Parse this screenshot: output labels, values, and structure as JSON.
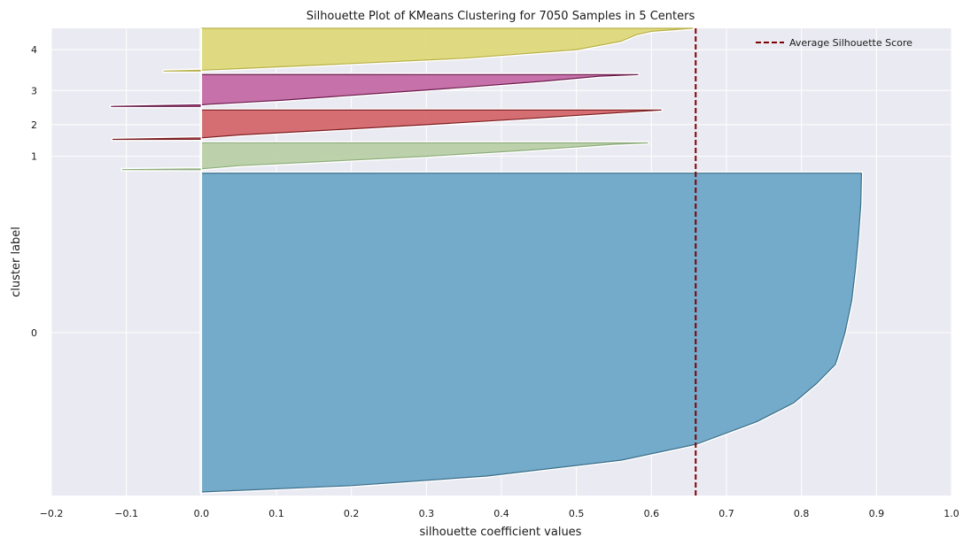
{
  "chart_data": {
    "type": "area",
    "title": "Silhouette Plot of KMeans Clustering for 7050 Samples in 5 Centers",
    "xlabel": "silhouette coefficient values",
    "ylabel": "cluster label",
    "xlim": [
      -0.2,
      1.0
    ],
    "x_ticks": [
      -0.2,
      -0.1,
      0.0,
      0.1,
      0.2,
      0.3,
      0.4,
      0.5,
      0.6,
      0.7,
      0.8,
      0.9,
      1.0
    ],
    "x_tick_labels": [
      "−0.2",
      "−0.1",
      "0.0",
      "0.1",
      "0.2",
      "0.3",
      "0.4",
      "0.5",
      "0.6",
      "0.7",
      "0.8",
      "0.9",
      "1.0"
    ],
    "y_tick_labels": [
      "0",
      "1",
      "2",
      "3",
      "4"
    ],
    "grid": true,
    "background": "#eaeaf2",
    "average_silhouette_score": 0.659,
    "legend": {
      "label": "Average Silhouette Score",
      "placement": "top-right",
      "color": "#7b0000"
    },
    "clusters": [
      {
        "label": "0",
        "size": 5000,
        "min": -0.0,
        "max": 0.88,
        "color": "#6ea7c7",
        "edge": "#3b6f8a",
        "profile": [
          [
            0,
            0.88
          ],
          [
            0.1,
            0.879
          ],
          [
            0.2,
            0.876
          ],
          [
            0.3,
            0.872
          ],
          [
            0.4,
            0.867
          ],
          [
            0.5,
            0.858
          ],
          [
            0.58,
            0.848
          ],
          [
            0.6,
            0.845
          ],
          [
            0.66,
            0.82
          ],
          [
            0.72,
            0.79
          ],
          [
            0.78,
            0.74
          ],
          [
            0.85,
            0.66
          ],
          [
            0.9,
            0.56
          ],
          [
            0.95,
            0.38
          ],
          [
            0.98,
            0.2
          ],
          [
            1.0,
            0.0
          ]
        ]
      },
      {
        "label": "1",
        "size": 420,
        "min": -0.105,
        "max": 0.595,
        "color": "#b9d0a7",
        "edge": "#8fad7e",
        "profile": [
          [
            0,
            0.595
          ],
          [
            0.05,
            0.55
          ],
          [
            0.15,
            0.5
          ],
          [
            0.3,
            0.42
          ],
          [
            0.5,
            0.3
          ],
          [
            0.7,
            0.16
          ],
          [
            0.85,
            0.05
          ],
          [
            0.97,
            0.0
          ],
          [
            1.0,
            -0.105
          ]
        ]
      },
      {
        "label": "2",
        "size": 460,
        "min": -0.118,
        "max": 0.613,
        "color": "#d4676b",
        "edge": "#7b1e22",
        "profile": [
          [
            0,
            0.613
          ],
          [
            0.05,
            0.58
          ],
          [
            0.15,
            0.52
          ],
          [
            0.3,
            0.43
          ],
          [
            0.5,
            0.3
          ],
          [
            0.7,
            0.16
          ],
          [
            0.85,
            0.05
          ],
          [
            0.95,
            0.0
          ],
          [
            1.0,
            -0.118
          ]
        ]
      },
      {
        "label": "3",
        "size": 500,
        "min": -0.12,
        "max": 0.582,
        "color": "#c46aa5",
        "edge": "#6b1c4d",
        "profile": [
          [
            0,
            0.582
          ],
          [
            0.05,
            0.53
          ],
          [
            0.2,
            0.46
          ],
          [
            0.4,
            0.35
          ],
          [
            0.6,
            0.23
          ],
          [
            0.8,
            0.11
          ],
          [
            0.93,
            0.01
          ],
          [
            0.95,
            0.0
          ],
          [
            1.0,
            -0.12
          ]
        ]
      },
      {
        "label": "4",
        "size": 670,
        "min": -0.05,
        "max": 0.655,
        "color": "#ded87a",
        "edge": "#b8b14a",
        "profile": [
          [
            0,
            0.655
          ],
          [
            0.07,
            0.6
          ],
          [
            0.15,
            0.58
          ],
          [
            0.3,
            0.56
          ],
          [
            0.5,
            0.5
          ],
          [
            0.7,
            0.35
          ],
          [
            0.85,
            0.17
          ],
          [
            0.96,
            0.03
          ],
          [
            0.98,
            0.0
          ],
          [
            1.0,
            -0.05
          ]
        ]
      }
    ]
  }
}
